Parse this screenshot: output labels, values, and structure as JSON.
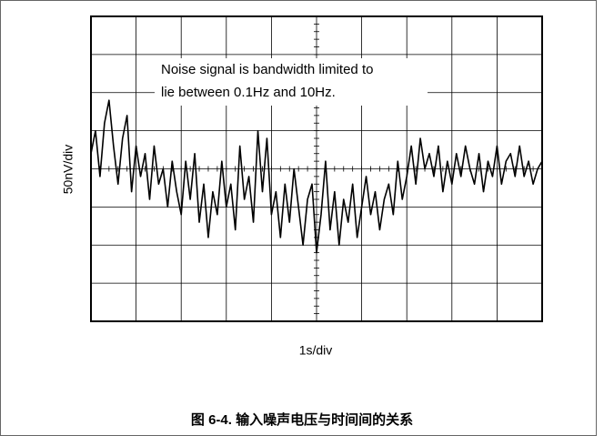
{
  "chart_data": {
    "type": "line",
    "xlabel": "1s/div",
    "ylabel": "50nV/div",
    "annotation": [
      "Noise signal is bandwidth limited to",
      "lie between 0.1Hz and 10Hz."
    ],
    "caption": "图 6-4. 输入噪声电压与时间间的关系",
    "x": [
      0,
      0.1,
      0.2,
      0.3,
      0.4,
      0.5,
      0.6,
      0.7,
      0.8,
      0.9,
      1,
      1.1,
      1.2,
      1.3,
      1.4,
      1.5,
      1.6,
      1.7,
      1.8,
      1.9,
      2,
      2.1,
      2.2,
      2.3,
      2.4,
      2.5,
      2.6,
      2.7,
      2.8,
      2.9,
      3,
      3.1,
      3.2,
      3.3,
      3.4,
      3.5,
      3.6,
      3.7,
      3.8,
      3.9,
      4,
      4.1,
      4.2,
      4.3,
      4.4,
      4.5,
      4.6,
      4.7,
      4.8,
      4.9,
      5,
      5.1,
      5.2,
      5.3,
      5.4,
      5.5,
      5.6,
      5.7,
      5.8,
      5.9,
      6,
      6.1,
      6.2,
      6.3,
      6.4,
      6.5,
      6.6,
      6.7,
      6.8,
      6.9,
      7,
      7.1,
      7.2,
      7.3,
      7.4,
      7.5,
      7.6,
      7.7,
      7.8,
      7.9,
      8,
      8.1,
      8.2,
      8.3,
      8.4,
      8.5,
      8.6,
      8.7,
      8.8,
      8.9,
      9,
      9.1,
      9.2,
      9.3,
      9.4,
      9.5,
      9.6,
      9.7,
      9.8,
      9.9,
      10
    ],
    "values": [
      20,
      50,
      -10,
      60,
      90,
      30,
      -20,
      40,
      70,
      -30,
      30,
      -10,
      20,
      -40,
      30,
      -20,
      0,
      -50,
      10,
      -30,
      -60,
      10,
      -40,
      20,
      -70,
      -20,
      -90,
      -30,
      -60,
      10,
      -50,
      -20,
      -80,
      30,
      -40,
      -10,
      -70,
      50,
      -30,
      40,
      -60,
      -30,
      -90,
      -20,
      -70,
      0,
      -50,
      -100,
      -40,
      -20,
      -110,
      -60,
      10,
      -80,
      -30,
      -100,
      -40,
      -70,
      -20,
      -90,
      -50,
      -10,
      -60,
      -30,
      -80,
      -40,
      -20,
      -60,
      10,
      -40,
      -10,
      30,
      -20,
      40,
      0,
      20,
      -10,
      30,
      -30,
      10,
      -20,
      20,
      -10,
      30,
      0,
      -20,
      20,
      -30,
      10,
      -10,
      30,
      -20,
      10,
      20,
      -10,
      30,
      -10,
      10,
      -20,
      0,
      10
    ],
    "color": "#000000",
    "xlim": [
      0,
      10
    ],
    "ylim": [
      -200,
      200
    ],
    "xticks": [
      0,
      1,
      2,
      3,
      4,
      5,
      6,
      7,
      8,
      9,
      10
    ],
    "yticks": [
      -200,
      -150,
      -100,
      -50,
      0,
      50,
      100,
      150,
      200
    ],
    "grid": true
  }
}
